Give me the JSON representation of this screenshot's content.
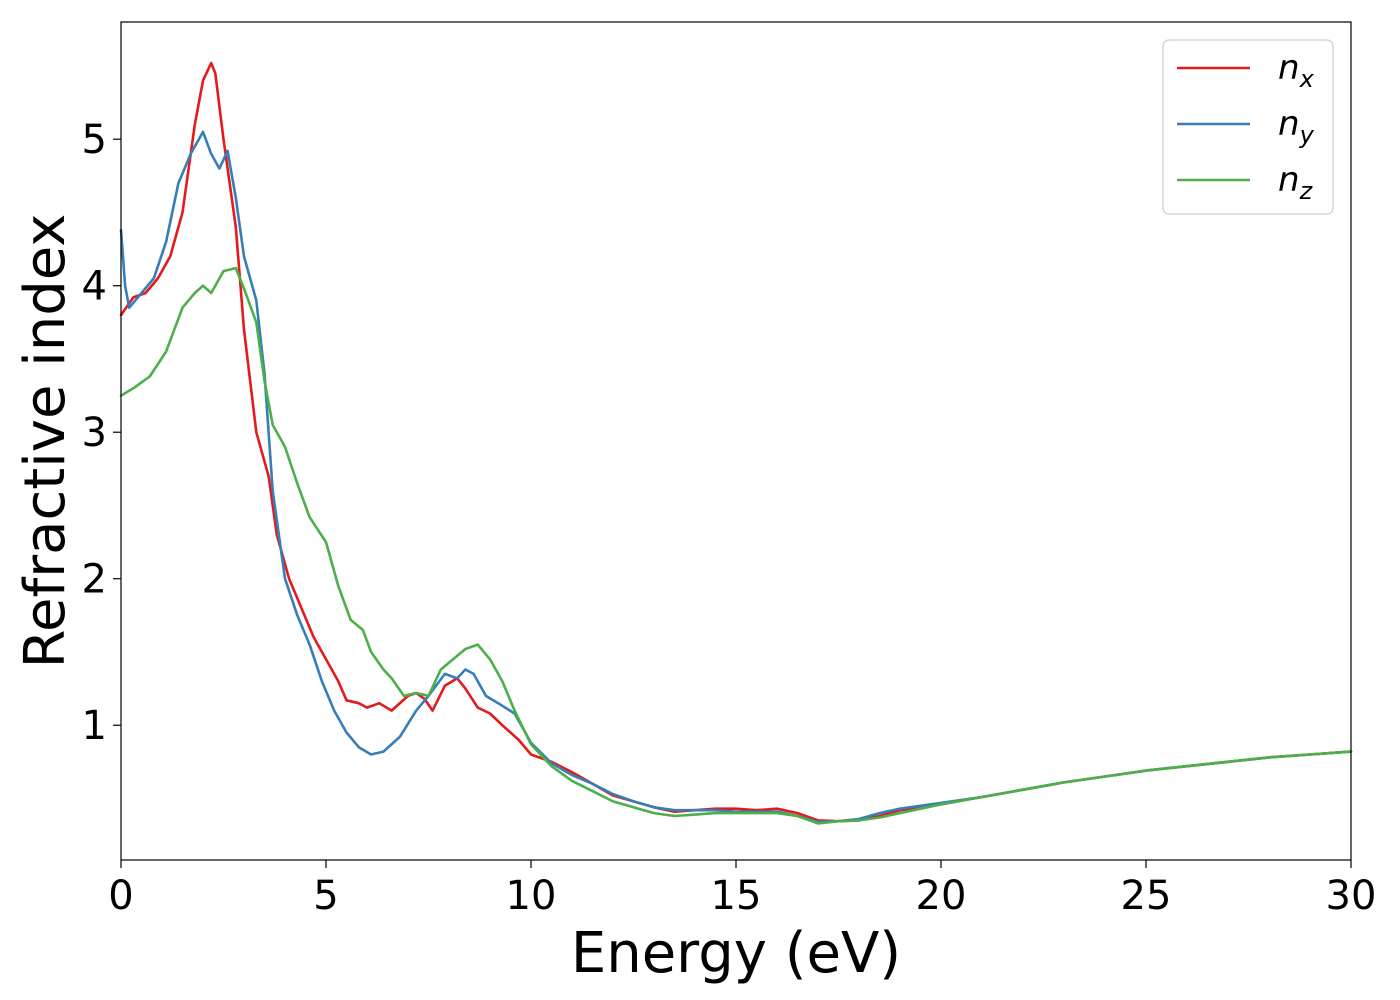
{
  "chart_data": {
    "type": "line",
    "title": "",
    "xlabel": "Energy (eV)",
    "ylabel": "Refractive index",
    "xlim": [
      0,
      30
    ],
    "ylim": [
      0.08,
      5.8
    ],
    "xticks": [
      "0",
      "5",
      "10",
      "15",
      "20",
      "25",
      "30"
    ],
    "yticks": [
      "1",
      "2",
      "3",
      "4",
      "5"
    ],
    "grid": false,
    "legend_placement": "top-right",
    "series": [
      {
        "name": "n",
        "subscript": "x",
        "color": "#e41a1c",
        "points": [
          [
            0,
            3.8
          ],
          [
            0.3,
            3.92
          ],
          [
            0.6,
            3.95
          ],
          [
            0.9,
            4.05
          ],
          [
            1.2,
            4.2
          ],
          [
            1.5,
            4.5
          ],
          [
            1.8,
            5.1
          ],
          [
            2.0,
            5.4
          ],
          [
            2.2,
            5.52
          ],
          [
            2.3,
            5.45
          ],
          [
            2.5,
            5.0
          ],
          [
            2.8,
            4.4
          ],
          [
            3.0,
            3.7
          ],
          [
            3.3,
            3.0
          ],
          [
            3.6,
            2.7
          ],
          [
            3.8,
            2.3
          ],
          [
            4.1,
            2.0
          ],
          [
            4.4,
            1.8
          ],
          [
            4.7,
            1.6
          ],
          [
            5.0,
            1.45
          ],
          [
            5.3,
            1.3
          ],
          [
            5.5,
            1.17
          ],
          [
            5.8,
            1.15
          ],
          [
            6.0,
            1.12
          ],
          [
            6.3,
            1.15
          ],
          [
            6.6,
            1.1
          ],
          [
            7.0,
            1.2
          ],
          [
            7.2,
            1.22
          ],
          [
            7.4,
            1.18
          ],
          [
            7.6,
            1.1
          ],
          [
            7.9,
            1.27
          ],
          [
            8.2,
            1.32
          ],
          [
            8.4,
            1.25
          ],
          [
            8.7,
            1.12
          ],
          [
            9.0,
            1.08
          ],
          [
            9.3,
            1.0
          ],
          [
            9.7,
            0.9
          ],
          [
            10.0,
            0.8
          ],
          [
            10.5,
            0.75
          ],
          [
            11.0,
            0.68
          ],
          [
            11.5,
            0.6
          ],
          [
            12.0,
            0.52
          ],
          [
            12.5,
            0.48
          ],
          [
            13.0,
            0.44
          ],
          [
            13.5,
            0.41
          ],
          [
            14.0,
            0.42
          ],
          [
            14.5,
            0.43
          ],
          [
            15.0,
            0.43
          ],
          [
            15.5,
            0.42
          ],
          [
            16.0,
            0.43
          ],
          [
            16.5,
            0.4
          ],
          [
            17.0,
            0.35
          ],
          [
            17.5,
            0.345
          ],
          [
            18.0,
            0.35
          ],
          [
            18.5,
            0.38
          ],
          [
            19.0,
            0.42
          ],
          [
            19.5,
            0.44
          ],
          [
            20.0,
            0.46
          ],
          [
            21.0,
            0.51
          ],
          [
            22.0,
            0.56
          ],
          [
            23.0,
            0.61
          ],
          [
            24.0,
            0.65
          ],
          [
            25.0,
            0.69
          ],
          [
            26.0,
            0.72
          ],
          [
            27.0,
            0.75
          ],
          [
            28.0,
            0.78
          ],
          [
            29.0,
            0.8
          ],
          [
            30.0,
            0.82
          ]
        ]
      },
      {
        "name": "n",
        "subscript": "y",
        "color": "#377eb8",
        "points": [
          [
            0,
            4.38
          ],
          [
            0.1,
            4.0
          ],
          [
            0.2,
            3.85
          ],
          [
            0.5,
            3.95
          ],
          [
            0.8,
            4.05
          ],
          [
            1.1,
            4.3
          ],
          [
            1.4,
            4.7
          ],
          [
            1.7,
            4.9
          ],
          [
            2.0,
            5.05
          ],
          [
            2.2,
            4.9
          ],
          [
            2.4,
            4.8
          ],
          [
            2.6,
            4.92
          ],
          [
            2.8,
            4.6
          ],
          [
            3.0,
            4.2
          ],
          [
            3.3,
            3.9
          ],
          [
            3.5,
            3.4
          ],
          [
            3.7,
            2.6
          ],
          [
            4.0,
            2.0
          ],
          [
            4.3,
            1.75
          ],
          [
            4.6,
            1.55
          ],
          [
            4.9,
            1.3
          ],
          [
            5.2,
            1.1
          ],
          [
            5.5,
            0.95
          ],
          [
            5.8,
            0.85
          ],
          [
            6.1,
            0.8
          ],
          [
            6.4,
            0.82
          ],
          [
            6.8,
            0.92
          ],
          [
            7.2,
            1.1
          ],
          [
            7.5,
            1.2
          ],
          [
            7.9,
            1.35
          ],
          [
            8.2,
            1.32
          ],
          [
            8.4,
            1.38
          ],
          [
            8.6,
            1.35
          ],
          [
            8.9,
            1.2
          ],
          [
            9.2,
            1.15
          ],
          [
            9.6,
            1.08
          ],
          [
            10.0,
            0.88
          ],
          [
            10.5,
            0.74
          ],
          [
            11.0,
            0.66
          ],
          [
            11.5,
            0.6
          ],
          [
            12.0,
            0.53
          ],
          [
            12.5,
            0.48
          ],
          [
            13.0,
            0.44
          ],
          [
            13.5,
            0.42
          ],
          [
            14.0,
            0.42
          ],
          [
            14.5,
            0.42
          ],
          [
            15.0,
            0.41
          ],
          [
            15.5,
            0.41
          ],
          [
            16.0,
            0.41
          ],
          [
            16.5,
            0.38
          ],
          [
            17.0,
            0.34
          ],
          [
            17.5,
            0.345
          ],
          [
            18.0,
            0.36
          ],
          [
            18.5,
            0.4
          ],
          [
            19.0,
            0.43
          ],
          [
            19.5,
            0.45
          ],
          [
            20.0,
            0.47
          ],
          [
            21.0,
            0.51
          ],
          [
            22.0,
            0.56
          ],
          [
            23.0,
            0.61
          ],
          [
            24.0,
            0.65
          ],
          [
            25.0,
            0.69
          ],
          [
            26.0,
            0.72
          ],
          [
            27.0,
            0.75
          ],
          [
            28.0,
            0.78
          ],
          [
            29.0,
            0.8
          ],
          [
            30.0,
            0.82
          ]
        ]
      },
      {
        "name": "n",
        "subscript": "z",
        "color": "#4daf4a",
        "points": [
          [
            0,
            3.25
          ],
          [
            0.3,
            3.3
          ],
          [
            0.7,
            3.38
          ],
          [
            1.1,
            3.55
          ],
          [
            1.5,
            3.85
          ],
          [
            1.8,
            3.95
          ],
          [
            2.0,
            4.0
          ],
          [
            2.2,
            3.95
          ],
          [
            2.5,
            4.1
          ],
          [
            2.8,
            4.12
          ],
          [
            3.0,
            3.98
          ],
          [
            3.3,
            3.75
          ],
          [
            3.5,
            3.35
          ],
          [
            3.7,
            3.05
          ],
          [
            4.0,
            2.9
          ],
          [
            4.3,
            2.65
          ],
          [
            4.6,
            2.42
          ],
          [
            5.0,
            2.25
          ],
          [
            5.3,
            1.95
          ],
          [
            5.6,
            1.72
          ],
          [
            5.9,
            1.65
          ],
          [
            6.1,
            1.5
          ],
          [
            6.4,
            1.38
          ],
          [
            6.6,
            1.32
          ],
          [
            6.9,
            1.2
          ],
          [
            7.2,
            1.22
          ],
          [
            7.5,
            1.2
          ],
          [
            7.8,
            1.38
          ],
          [
            8.1,
            1.45
          ],
          [
            8.4,
            1.52
          ],
          [
            8.7,
            1.55
          ],
          [
            9.0,
            1.45
          ],
          [
            9.3,
            1.3
          ],
          [
            9.6,
            1.1
          ],
          [
            10.0,
            0.87
          ],
          [
            10.5,
            0.72
          ],
          [
            11.0,
            0.62
          ],
          [
            11.5,
            0.55
          ],
          [
            12.0,
            0.48
          ],
          [
            12.5,
            0.44
          ],
          [
            13.0,
            0.4
          ],
          [
            13.5,
            0.38
          ],
          [
            14.0,
            0.39
          ],
          [
            14.5,
            0.4
          ],
          [
            15.0,
            0.4
          ],
          [
            15.5,
            0.4
          ],
          [
            16.0,
            0.4
          ],
          [
            16.5,
            0.38
          ],
          [
            17.0,
            0.33
          ],
          [
            17.5,
            0.345
          ],
          [
            18.0,
            0.35
          ],
          [
            18.5,
            0.37
          ],
          [
            19.0,
            0.4
          ],
          [
            19.5,
            0.43
          ],
          [
            20.0,
            0.46
          ],
          [
            21.0,
            0.51
          ],
          [
            22.0,
            0.56
          ],
          [
            23.0,
            0.61
          ],
          [
            24.0,
            0.65
          ],
          [
            25.0,
            0.69
          ],
          [
            26.0,
            0.72
          ],
          [
            27.0,
            0.75
          ],
          [
            28.0,
            0.78
          ],
          [
            29.0,
            0.8
          ],
          [
            30.0,
            0.82
          ]
        ]
      }
    ]
  }
}
